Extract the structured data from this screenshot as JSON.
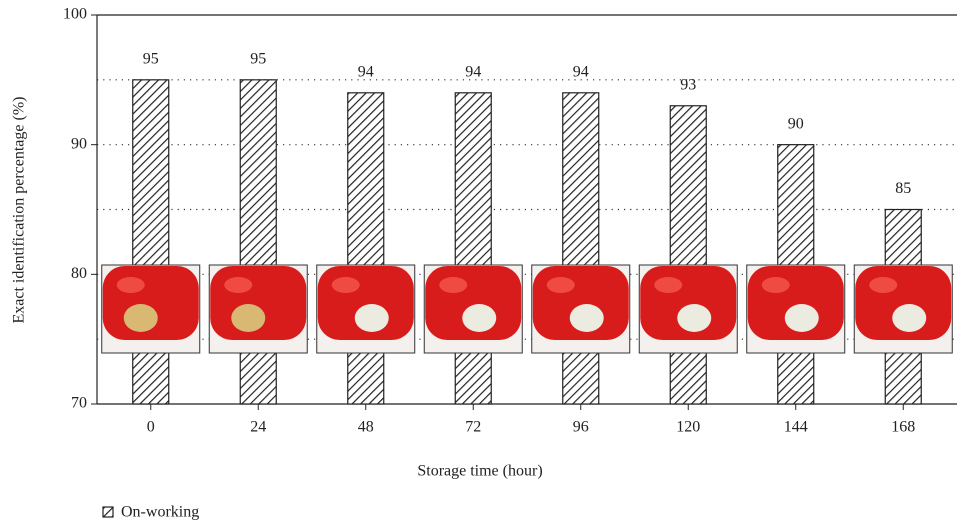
{
  "chart_data": {
    "type": "bar",
    "x_label": "Storage time (hour)",
    "y_label": "Exact identification percentage (%)",
    "categories": [
      "0",
      "24",
      "48",
      "72",
      "96",
      "120",
      "144",
      "168"
    ],
    "series": [
      {
        "name": "On-working",
        "values": [
          95,
          95,
          94,
          94,
          94,
          93,
          90,
          85
        ],
        "color": "#222222"
      }
    ],
    "ylim": [
      70,
      100
    ],
    "yticks": [
      70,
      80,
      90,
      100
    ],
    "minor_yticks": [
      75,
      85,
      95
    ],
    "grid": true,
    "legend": "bottom-left"
  }
}
